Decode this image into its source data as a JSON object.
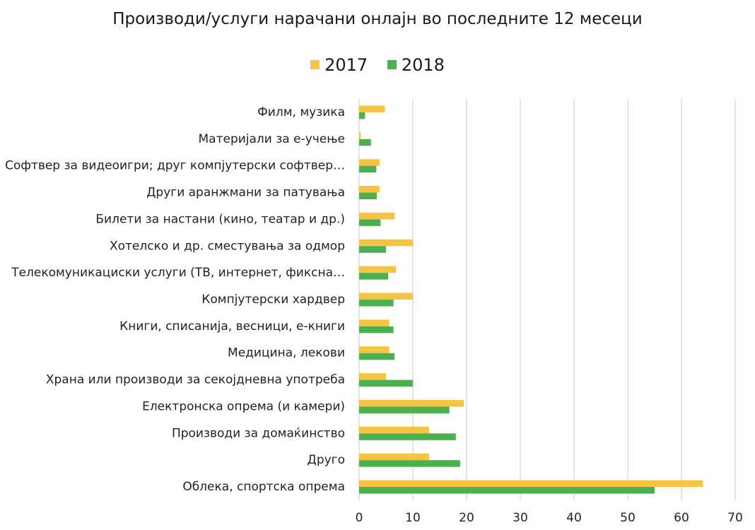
{
  "chart_data": {
    "type": "bar",
    "orientation": "horizontal",
    "title": "Производи/услуги нарачани онлајн во последните 12 месеци",
    "categories": [
      "Филм, музика",
      "Материјали за е-учење",
      "Софтвер за видеоигри; друг компјутерски софтвер…",
      "Други аранжмани за патувања",
      "Билети за настани (кино, театар и др.)",
      "Хотелско и др. сместувања за одмор",
      "Телекомуникациски услуги (ТВ, интернет, фиксна…",
      "Компјутерски хардвер",
      "Книги, списанија, весници, е-книги",
      "Медицина, лекови",
      "Храна или производи за секојдневна употреба",
      "Електронска опрема (и камери)",
      "Производи за домаќинство",
      "Друго",
      "Облека, спортска опрема"
    ],
    "series": [
      {
        "name": "2017",
        "color": "#F6C342",
        "values": [
          4.8,
          0.3,
          3.8,
          3.8,
          6.6,
          10,
          6.9,
          10,
          5.6,
          5.6,
          5.0,
          19.5,
          13,
          13,
          64
        ]
      },
      {
        "name": "2018",
        "color": "#4DAF50",
        "values": [
          1.1,
          2.2,
          3.2,
          3.3,
          4.0,
          5.0,
          5.4,
          6.4,
          6.4,
          6.6,
          10,
          16.8,
          18,
          18.8,
          55
        ]
      }
    ],
    "xlim": [
      0,
      70
    ],
    "xticks": [
      "0",
      "10",
      "20",
      "30",
      "40",
      "50",
      "60",
      "70"
    ],
    "grid": true,
    "legend_position": "top"
  }
}
